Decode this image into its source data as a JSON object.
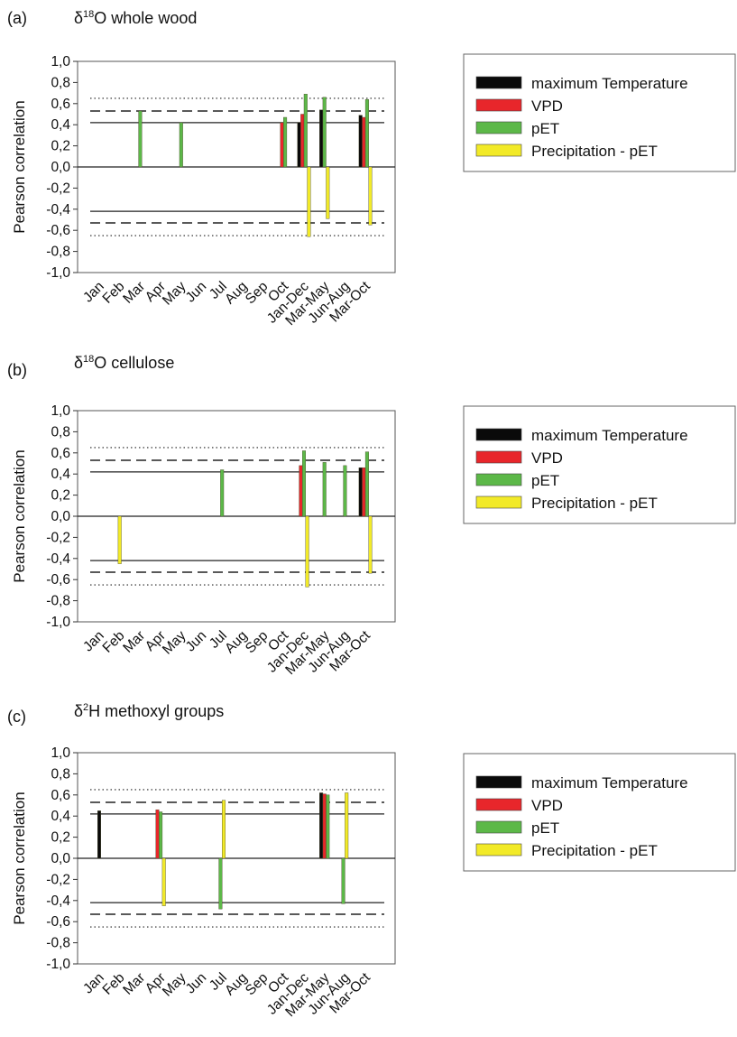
{
  "categories": [
    "Jan",
    "Feb",
    "Mar",
    "Apr",
    "May",
    "Jun",
    "Jul",
    "Aug",
    "Sep",
    "Oct",
    "Jan-Dec",
    "Mar-May",
    "Jun-Aug",
    "Mar-Oct"
  ],
  "series_meta": [
    {
      "key": "tmax",
      "name": "maximum Temperature",
      "color": "#0a0a0a"
    },
    {
      "key": "vpd",
      "name": "VPD",
      "color": "#e8262b"
    },
    {
      "key": "pet",
      "name": "pET",
      "color": "#5cb848"
    },
    {
      "key": "ppet",
      "name": "Precipitation - pET",
      "color": "#f2ea28"
    }
  ],
  "chart_data": [
    {
      "panel": "(a)",
      "title_prefix": "δ",
      "title_sup": "18",
      "title_rest": "O whole wood",
      "type": "bar",
      "ylabel": "Pearson correlation",
      "ylim": [
        -1.0,
        1.0
      ],
      "yticks": [
        "1,0",
        "0,8",
        "0,6",
        "0,4",
        "0,2",
        "0,0",
        "-0,2",
        "-0,4",
        "-0,6",
        "-0,8",
        "-1,0"
      ],
      "reference_lines": {
        "solid": 0.42,
        "dashed": 0.53,
        "dotted": 0.65
      },
      "series": [
        {
          "name": "maximum Temperature",
          "values": [
            null,
            null,
            null,
            null,
            null,
            null,
            null,
            null,
            null,
            null,
            0.42,
            0.54,
            null,
            0.49
          ]
        },
        {
          "name": "VPD",
          "values": [
            null,
            null,
            null,
            null,
            null,
            null,
            null,
            null,
            null,
            0.42,
            0.5,
            null,
            null,
            0.47
          ]
        },
        {
          "name": "pET",
          "values": [
            null,
            null,
            0.53,
            null,
            0.42,
            null,
            null,
            null,
            null,
            0.47,
            0.69,
            0.66,
            null,
            0.64
          ]
        },
        {
          "name": "Precipitation - pET",
          "values": [
            null,
            null,
            null,
            null,
            null,
            null,
            null,
            null,
            null,
            null,
            -0.66,
            -0.49,
            null,
            -0.55
          ]
        }
      ]
    },
    {
      "panel": "(b)",
      "title_prefix": "δ",
      "title_sup": "18",
      "title_rest": "O cellulose",
      "type": "bar",
      "ylabel": "Pearson correlation",
      "ylim": [
        -1.0,
        1.0
      ],
      "yticks": [
        "1,0",
        "0,8",
        "0,6",
        "0,4",
        "0,2",
        "0,0",
        "-0,2",
        "-0,4",
        "-0,6",
        "-0,8",
        "-1,0"
      ],
      "reference_lines": {
        "solid": 0.42,
        "dashed": 0.53,
        "dotted": 0.65
      },
      "series": [
        {
          "name": "maximum Temperature",
          "values": [
            null,
            null,
            null,
            null,
            null,
            null,
            null,
            null,
            null,
            null,
            null,
            null,
            null,
            0.46
          ]
        },
        {
          "name": "VPD",
          "values": [
            null,
            null,
            null,
            null,
            null,
            null,
            null,
            null,
            null,
            null,
            0.48,
            null,
            null,
            0.46
          ]
        },
        {
          "name": "pET",
          "values": [
            null,
            null,
            null,
            null,
            null,
            null,
            0.44,
            null,
            null,
            null,
            0.62,
            0.51,
            0.48,
            0.61
          ]
        },
        {
          "name": "Precipitation - pET",
          "values": [
            null,
            -0.45,
            null,
            null,
            null,
            null,
            null,
            null,
            null,
            null,
            -0.67,
            null,
            null,
            -0.54
          ]
        }
      ]
    },
    {
      "panel": "(c)",
      "title_prefix": "δ",
      "title_sup": "2",
      "title_rest": "H methoxyl groups",
      "type": "bar",
      "ylabel": "Pearson correlation",
      "ylim": [
        -1.0,
        1.0
      ],
      "yticks": [
        "1,0",
        "0,8",
        "0,6",
        "0,4",
        "0,2",
        "0,0",
        "-0,2",
        "-0,4",
        "-0,6",
        "-0,8",
        "-1,0"
      ],
      "reference_lines": {
        "solid": 0.42,
        "dashed": 0.53,
        "dotted": 0.65
      },
      "series": [
        {
          "name": "maximum Temperature",
          "values": [
            0.45,
            null,
            null,
            null,
            null,
            null,
            null,
            null,
            null,
            null,
            null,
            0.62,
            null,
            null
          ]
        },
        {
          "name": "VPD",
          "values": [
            null,
            null,
            null,
            0.46,
            null,
            null,
            null,
            null,
            null,
            null,
            null,
            0.61,
            null,
            null
          ]
        },
        {
          "name": "pET",
          "values": [
            null,
            null,
            null,
            0.44,
            null,
            null,
            -0.48,
            null,
            null,
            null,
            null,
            0.6,
            -0.43,
            null
          ]
        },
        {
          "name": "Precipitation - pET",
          "values": [
            null,
            null,
            null,
            -0.45,
            null,
            null,
            0.55,
            null,
            null,
            null,
            null,
            null,
            0.62,
            null
          ]
        }
      ]
    }
  ]
}
